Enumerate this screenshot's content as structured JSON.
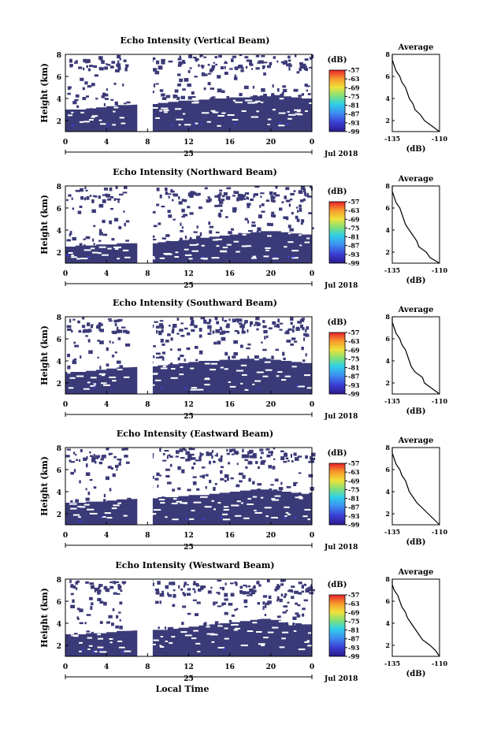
{
  "figure": {
    "xlabel_bottom": "Local Time",
    "date_label": "Jul 2018",
    "day_label": "25",
    "xticks": [
      "0",
      "4",
      "8",
      "12",
      "16",
      "20",
      "0"
    ],
    "ylabel": "Height (km)",
    "yticks": [
      "2",
      "4",
      "6",
      "8"
    ],
    "colorbar_unit": "(dB)",
    "colorbar_ticks": [
      "-57",
      "-63",
      "-69",
      "-75",
      "-81",
      "-87",
      "-93",
      "-99"
    ],
    "avg_title": "Average",
    "avg_xticks": [
      "-135",
      "-110"
    ],
    "avg_xlabel": "(dB)"
  },
  "chart_data": [
    {
      "type": "heatmap",
      "title": "Echo Intensity (Vertical Beam)",
      "x_range_hours": [
        0,
        24
      ],
      "y_range_km": [
        1,
        8
      ],
      "echo_top_km": [
        3.0,
        3.0,
        3.1,
        3.2,
        3.3,
        3.4,
        null,
        null,
        3.5,
        3.6,
        3.7,
        3.8,
        3.8,
        3.9,
        4.0,
        4.0,
        4.1,
        4.1,
        4.2,
        4.2,
        4.3,
        4.2,
        4.1,
        4.0
      ],
      "gap_hours": [
        7.0,
        8.5
      ],
      "dominant_value_db": -99,
      "colorbar": {
        "min": -99,
        "max": -57
      },
      "average_profile": {
        "heights_km": [
          1.0,
          1.5,
          2.0,
          2.5,
          3.0,
          3.5,
          4.0,
          4.5,
          5.0,
          5.5,
          6.0,
          6.5,
          7.0,
          7.5,
          8.0
        ],
        "values_db": [
          -110,
          -114,
          -118,
          -120,
          -123,
          -124,
          -126,
          -127,
          -128,
          -130,
          -131,
          -133,
          -134,
          -135,
          -135
        ],
        "xlim": [
          -135,
          -110
        ],
        "ylim": [
          1,
          8
        ]
      }
    },
    {
      "type": "heatmap",
      "title": "Echo Intensity (Northward Beam)",
      "x_range_hours": [
        0,
        24
      ],
      "y_range_km": [
        1,
        8
      ],
      "echo_top_km": [
        2.5,
        2.6,
        2.6,
        2.7,
        2.7,
        2.8,
        null,
        null,
        2.8,
        2.9,
        3.0,
        3.1,
        3.2,
        3.3,
        3.4,
        3.5,
        3.6,
        3.7,
        3.8,
        3.9,
        3.9,
        3.8,
        3.7,
        3.6
      ],
      "gap_hours": [
        7.0,
        8.5
      ],
      "dominant_value_db": -99,
      "colorbar": {
        "min": -99,
        "max": -57
      },
      "average_profile": {
        "heights_km": [
          1.0,
          1.5,
          2.0,
          2.5,
          3.0,
          3.5,
          4.0,
          4.5,
          5.0,
          5.5,
          6.0,
          6.5,
          7.0,
          7.5,
          8.0
        ],
        "values_db": [
          -110,
          -115,
          -117,
          -121,
          -122,
          -124,
          -126,
          -128,
          -129,
          -130,
          -131,
          -133,
          -134,
          -135,
          -135
        ],
        "xlim": [
          -135,
          -110
        ],
        "ylim": [
          1,
          8
        ]
      }
    },
    {
      "type": "heatmap",
      "title": "Echo Intensity (Southward Beam)",
      "x_range_hours": [
        0,
        24
      ],
      "y_range_km": [
        1,
        8
      ],
      "echo_top_km": [
        3.0,
        3.0,
        3.1,
        3.2,
        3.3,
        3.4,
        null,
        null,
        3.5,
        3.6,
        3.7,
        3.8,
        3.9,
        4.0,
        4.0,
        4.1,
        4.1,
        4.2,
        4.2,
        4.2,
        4.1,
        4.0,
        3.9,
        3.8
      ],
      "gap_hours": [
        7.0,
        8.5
      ],
      "dominant_value_db": -99,
      "colorbar": {
        "min": -99,
        "max": -57
      },
      "average_profile": {
        "heights_km": [
          1.0,
          1.5,
          2.0,
          2.5,
          3.0,
          3.5,
          4.0,
          4.5,
          5.0,
          5.5,
          6.0,
          6.5,
          7.0,
          7.5,
          8.0
        ],
        "values_db": [
          -110,
          -114,
          -118,
          -119,
          -123,
          -125,
          -126,
          -127,
          -128,
          -130,
          -131,
          -133,
          -134,
          -135,
          -135
        ],
        "xlim": [
          -135,
          -110
        ],
        "ylim": [
          1,
          8
        ]
      }
    },
    {
      "type": "heatmap",
      "title": "Echo Intensity (Eastward Beam)",
      "x_range_hours": [
        0,
        24
      ],
      "y_range_km": [
        1,
        8
      ],
      "echo_top_km": [
        3.0,
        3.0,
        3.1,
        3.1,
        3.2,
        3.3,
        null,
        null,
        3.4,
        3.5,
        3.5,
        3.6,
        3.7,
        3.7,
        3.8,
        3.9,
        4.0,
        4.1,
        4.2,
        4.2,
        4.1,
        4.0,
        3.9,
        3.8
      ],
      "gap_hours": [
        7.0,
        8.5
      ],
      "dominant_value_db": -99,
      "colorbar": {
        "min": -99,
        "max": -57
      },
      "average_profile": {
        "heights_km": [
          1.0,
          1.5,
          2.0,
          2.5,
          3.0,
          3.5,
          4.0,
          4.5,
          5.0,
          5.5,
          6.0,
          6.5,
          7.0,
          7.5,
          8.0
        ],
        "values_db": [
          -110,
          -113,
          -116,
          -119,
          -122,
          -124,
          -126,
          -127,
          -128,
          -130,
          -131,
          -133,
          -134,
          -135,
          -135
        ],
        "xlim": [
          -135,
          -110
        ],
        "ylim": [
          1,
          8
        ]
      }
    },
    {
      "type": "heatmap",
      "title": "Echo Intensity (Westward Beam)",
      "x_range_hours": [
        0,
        24
      ],
      "y_range_km": [
        1,
        8
      ],
      "echo_top_km": [
        3.0,
        3.0,
        3.1,
        3.1,
        3.2,
        3.3,
        null,
        null,
        3.4,
        3.4,
        3.5,
        3.6,
        3.7,
        3.8,
        3.9,
        4.0,
        4.1,
        4.2,
        4.3,
        4.4,
        4.3,
        4.1,
        4.0,
        3.9
      ],
      "gap_hours": [
        7.0,
        8.5
      ],
      "dominant_value_db": -99,
      "colorbar": {
        "min": -99,
        "max": -57
      },
      "average_profile": {
        "heights_km": [
          1.0,
          1.5,
          2.0,
          2.5,
          3.0,
          3.5,
          4.0,
          4.5,
          5.0,
          5.5,
          6.0,
          6.5,
          7.0,
          7.5,
          8.0
        ],
        "values_db": [
          -110,
          -112,
          -115,
          -119,
          -121,
          -123,
          -125,
          -127,
          -128,
          -130,
          -131,
          -132,
          -134,
          -135,
          -135
        ],
        "xlim": [
          -135,
          -110
        ],
        "ylim": [
          1,
          8
        ]
      }
    }
  ]
}
